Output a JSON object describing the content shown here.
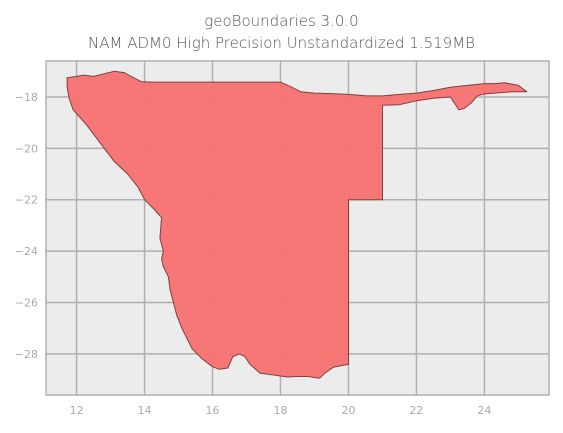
{
  "title": {
    "line1": "geoBoundaries 3.0.0",
    "line2": "NAM ADM0 High Precision Unstandardized 1.519MB"
  },
  "chart_data": {
    "type": "map",
    "xlim": [
      11.1,
      25.9
    ],
    "ylim": [
      -29.6,
      -16.6
    ],
    "x_ticks": [
      12,
      14,
      16,
      18,
      20,
      22,
      24
    ],
    "y_ticks": [
      -18,
      -20,
      -22,
      -24,
      -26,
      -28
    ],
    "x_tick_labels": [
      "12",
      "14",
      "16",
      "18",
      "20",
      "22",
      "24"
    ],
    "y_tick_labels": [
      "−18",
      "−20",
      "−22",
      "−24",
      "−26",
      "−28"
    ],
    "grid": true,
    "fill_color": "#f87171",
    "edge_color": "#7f4040",
    "background_color": "#ececec",
    "grid_color": "#b0b0b0",
    "polygon": [
      [
        11.72,
        -17.25
      ],
      [
        12.0,
        -17.2
      ],
      [
        12.2,
        -17.15
      ],
      [
        12.5,
        -17.2
      ],
      [
        12.8,
        -17.1
      ],
      [
        13.1,
        -17.0
      ],
      [
        13.4,
        -17.05
      ],
      [
        13.6,
        -17.2
      ],
      [
        13.9,
        -17.4
      ],
      [
        14.2,
        -17.42
      ],
      [
        16.0,
        -17.42
      ],
      [
        18.0,
        -17.42
      ],
      [
        18.3,
        -17.6
      ],
      [
        18.6,
        -17.8
      ],
      [
        19.0,
        -17.85
      ],
      [
        19.5,
        -17.87
      ],
      [
        20.0,
        -17.9
      ],
      [
        20.5,
        -17.95
      ],
      [
        21.0,
        -17.96
      ],
      [
        21.5,
        -17.9
      ],
      [
        22.0,
        -17.85
      ],
      [
        22.5,
        -17.75
      ],
      [
        23.0,
        -17.62
      ],
      [
        23.5,
        -17.55
      ],
      [
        24.0,
        -17.48
      ],
      [
        24.3,
        -17.48
      ],
      [
        24.6,
        -17.45
      ],
      [
        25.0,
        -17.55
      ],
      [
        25.25,
        -17.8
      ],
      [
        24.8,
        -17.8
      ],
      [
        24.3,
        -17.85
      ],
      [
        24.0,
        -17.88
      ],
      [
        23.8,
        -17.95
      ],
      [
        23.6,
        -18.25
      ],
      [
        23.4,
        -18.45
      ],
      [
        23.25,
        -18.5
      ],
      [
        23.1,
        -18.2
      ],
      [
        23.0,
        -18.0
      ],
      [
        22.5,
        -18.05
      ],
      [
        22.0,
        -18.15
      ],
      [
        21.5,
        -18.3
      ],
      [
        21.0,
        -18.32
      ],
      [
        21.0,
        -22.0
      ],
      [
        20.0,
        -22.0
      ],
      [
        20.0,
        -24.76
      ],
      [
        20.0,
        -28.4
      ],
      [
        19.55,
        -28.52
      ],
      [
        19.3,
        -28.75
      ],
      [
        19.15,
        -28.95
      ],
      [
        18.8,
        -28.88
      ],
      [
        18.5,
        -28.88
      ],
      [
        18.2,
        -28.9
      ],
      [
        17.8,
        -28.82
      ],
      [
        17.4,
        -28.75
      ],
      [
        17.1,
        -28.4
      ],
      [
        16.95,
        -28.1
      ],
      [
        16.8,
        -28.0
      ],
      [
        16.6,
        -28.1
      ],
      [
        16.45,
        -28.55
      ],
      [
        16.2,
        -28.6
      ],
      [
        16.0,
        -28.5
      ],
      [
        15.7,
        -28.2
      ],
      [
        15.4,
        -27.8
      ],
      [
        15.25,
        -27.4
      ],
      [
        15.1,
        -27.0
      ],
      [
        14.95,
        -26.5
      ],
      [
        14.85,
        -26.0
      ],
      [
        14.75,
        -25.5
      ],
      [
        14.7,
        -25.0
      ],
      [
        14.55,
        -24.6
      ],
      [
        14.5,
        -24.3
      ],
      [
        14.55,
        -24.0
      ],
      [
        14.45,
        -23.5
      ],
      [
        14.48,
        -23.0
      ],
      [
        14.5,
        -22.7
      ],
      [
        14.3,
        -22.4
      ],
      [
        14.0,
        -22.0
      ],
      [
        13.8,
        -21.5
      ],
      [
        13.5,
        -21.0
      ],
      [
        13.1,
        -20.5
      ],
      [
        12.7,
        -19.8
      ],
      [
        12.3,
        -19.1
      ],
      [
        11.9,
        -18.5
      ],
      [
        11.78,
        -18.05
      ],
      [
        11.72,
        -17.6
      ],
      [
        11.72,
        -17.25
      ]
    ]
  }
}
